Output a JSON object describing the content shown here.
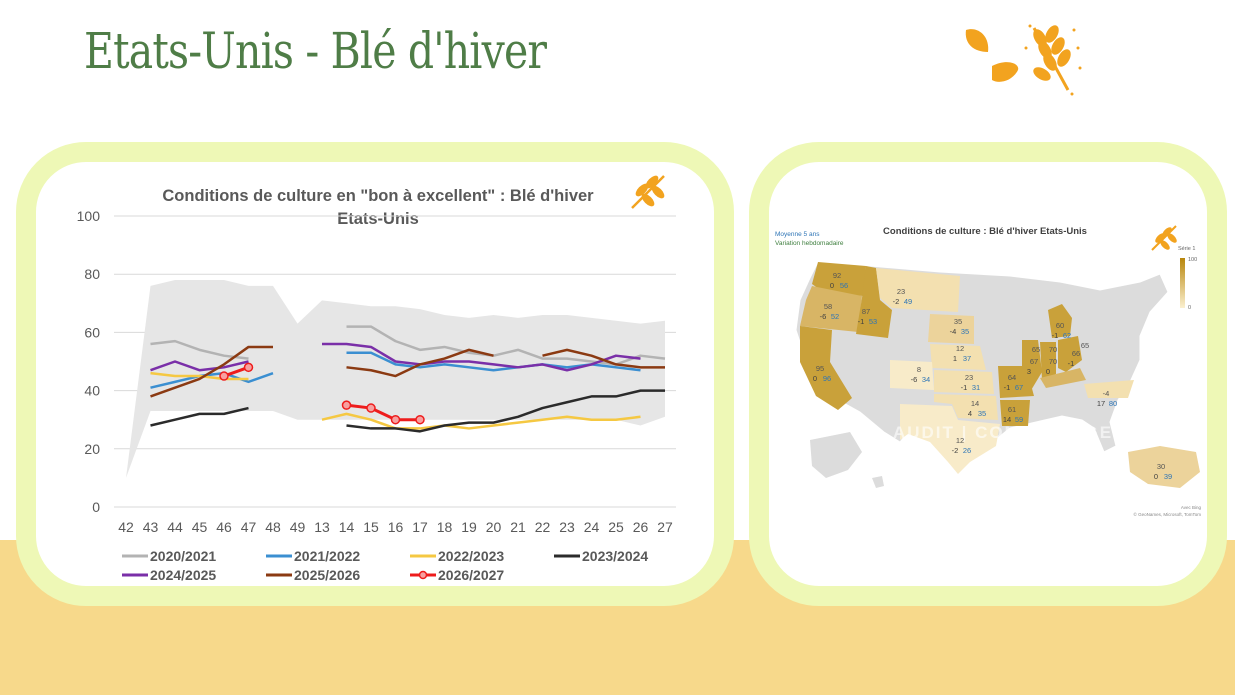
{
  "page": {
    "title": "Etats-Unis - Blé d'hiver"
  },
  "colors": {
    "accent": "#4f7d47",
    "frame": "#eef8b6",
    "band": "#f7d98b",
    "wheat": "#f2a31f"
  },
  "icons": [
    "leaf-icon",
    "wheat-icon"
  ],
  "chart_data": [
    {
      "type": "line",
      "title": "Conditions de culture en \"bon à excellent\" : Blé d'hiver Etats-Unis",
      "title_lines": [
        "Conditions de culture en \"bon à excellent\" : Blé d'hiver",
        "Etats-Unis"
      ],
      "xlabel": "",
      "ylabel": "",
      "categories": [
        "42",
        "43",
        "44",
        "45",
        "46",
        "47",
        "48",
        "49",
        "13",
        "14",
        "15",
        "16",
        "17",
        "18",
        "19",
        "20",
        "21",
        "22",
        "23",
        "24",
        "25",
        "26",
        "27"
      ],
      "ylim": [
        0,
        100
      ],
      "yticks": [
        "0",
        "20",
        "40",
        "60",
        "80",
        "100"
      ],
      "grid": true,
      "legend": "bottom",
      "range_band": {
        "upper": [
          null,
          76,
          78,
          78,
          78,
          76,
          76,
          63,
          71,
          70,
          69,
          69,
          68,
          66,
          65,
          66,
          65,
          66,
          66,
          65,
          64,
          63,
          64
        ],
        "lower": [
          10,
          33,
          33,
          33,
          33,
          33,
          33,
          30,
          30,
          30,
          30,
          30,
          30,
          30,
          30,
          30,
          30,
          30,
          30,
          30,
          30,
          28,
          31
        ]
      },
      "series": [
        {
          "name": "2020/2021",
          "color": "#b3b3b3",
          "values": [
            null,
            56,
            57,
            54,
            52,
            51,
            null,
            null,
            null,
            62,
            62,
            57,
            54,
            55,
            53,
            52,
            54,
            51,
            51,
            50,
            49,
            52,
            51
          ]
        },
        {
          "name": "2021/2022",
          "color": "#3b8fd1",
          "values": [
            null,
            41,
            43,
            45,
            46,
            43,
            46,
            null,
            null,
            53,
            53,
            49,
            48,
            49,
            48,
            47,
            48,
            49,
            48,
            49,
            48,
            47,
            null
          ]
        },
        {
          "name": "2022/2023",
          "color": "#f5c842",
          "values": [
            null,
            46,
            45,
            45,
            44,
            44,
            null,
            null,
            30,
            32,
            30,
            27,
            27,
            28,
            27,
            28,
            29,
            30,
            31,
            30,
            30,
            31,
            null
          ]
        },
        {
          "name": "2023/2024",
          "color": "#2b2b2b",
          "values": [
            null,
            28,
            30,
            32,
            32,
            34,
            null,
            null,
            null,
            28,
            27,
            27,
            26,
            28,
            29,
            29,
            31,
            34,
            36,
            38,
            38,
            40,
            40
          ]
        },
        {
          "name": "2024/2025",
          "color": "#7a2fa8",
          "values": [
            null,
            47,
            50,
            47,
            48,
            50,
            null,
            null,
            56,
            56,
            55,
            50,
            49,
            50,
            50,
            49,
            48,
            49,
            47,
            49,
            52,
            51,
            null
          ]
        },
        {
          "name": "2025/2026",
          "color": "#8b3a12",
          "values": [
            null,
            38,
            41,
            44,
            49,
            55,
            55,
            null,
            null,
            48,
            47,
            45,
            49,
            51,
            54,
            52,
            null,
            52,
            54,
            52,
            49,
            48,
            48
          ]
        },
        {
          "name": "2026/2027",
          "color": "#ee1c1c",
          "values": [
            null,
            null,
            null,
            null,
            45,
            48,
            null,
            null,
            null,
            35,
            34,
            30,
            30,
            null,
            null,
            null,
            null,
            null,
            null,
            null,
            null,
            null,
            null
          ]
        }
      ]
    }
  ],
  "map": {
    "title": "Conditions de culture : Blé d'hiver Etats-Unis",
    "legend_left": [
      "Moyenne 5 ans",
      "Variation hebdomadaire"
    ],
    "scale_title": "Série 1",
    "scale_max": "100",
    "scale_min": "0",
    "credit": "Avec Bing",
    "copyright": "© GeoNames, Microsoft, TomTom",
    "watermark": "AUDIT | CONSEIL | GESTION",
    "states": [
      {
        "main": "92",
        "avg": "0",
        "var": "56"
      },
      {
        "main": "58",
        "avg": "-6",
        "var": "52"
      },
      {
        "main": "87",
        "avg": "-1",
        "var": "53"
      },
      {
        "main": "23",
        "avg": "-2",
        "var": "49"
      },
      {
        "main": "35",
        "avg": "-4",
        "var": "35"
      },
      {
        "main": "12",
        "avg": "1",
        "var": "37"
      },
      {
        "main": "8",
        "avg": "-6",
        "var": "34"
      },
      {
        "main": "23",
        "avg": "-1",
        "var": "31"
      },
      {
        "main": "14",
        "avg": "4",
        "var": "35"
      },
      {
        "main": "12",
        "avg": "-2",
        "var": "26"
      },
      {
        "main": "95",
        "avg": "0",
        "var": "96"
      },
      {
        "main": "64",
        "avg": "-1",
        "var": "67"
      },
      {
        "main": "61",
        "avg": "14",
        "var": "59"
      },
      {
        "main": "65",
        "avg": "",
        "var": ""
      },
      {
        "main": "67",
        "avg": "3",
        "var": ""
      },
      {
        "main": "70",
        "avg": "",
        "var": ""
      },
      {
        "main": "70",
        "avg": "0",
        "var": ""
      },
      {
        "main": "60",
        "avg": "-1",
        "var": "62"
      },
      {
        "main": "66",
        "avg": "-1",
        "var": ""
      },
      {
        "main": "65",
        "avg": "",
        "var": ""
      },
      {
        "main": "-4",
        "avg": "17",
        "var": "80"
      },
      {
        "main": "30",
        "avg": "0",
        "var": "39"
      }
    ]
  }
}
